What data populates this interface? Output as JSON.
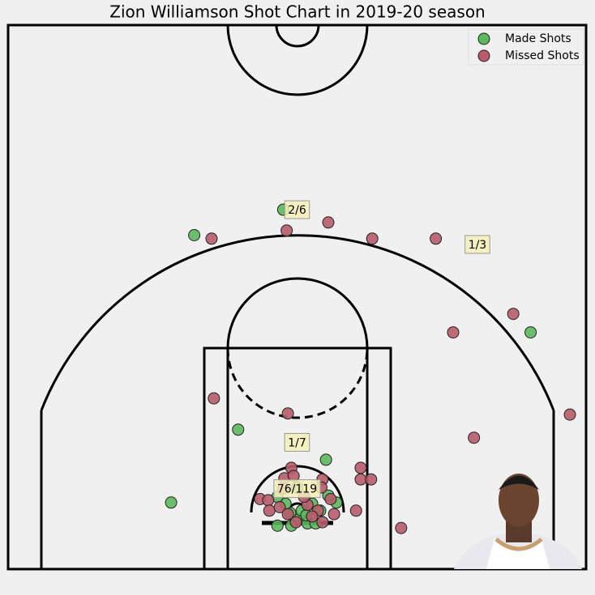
{
  "chart_data": {
    "type": "scatter",
    "title": "Zion Williamson Shot Chart in 2019-20 season",
    "xlim": [
      -250,
      250
    ],
    "ylim": [
      -47.5,
      422.5
    ],
    "legend": "upper right",
    "series": [
      {
        "name": "Made Shots",
        "color": "#5cb85c",
        "x": [
          -12,
          -89,
          -51,
          25,
          202,
          -109,
          -17,
          0,
          9,
          16,
          -6,
          4,
          34,
          27,
          -10,
          13,
          -17,
          0,
          20,
          -5,
          8
        ],
        "values": [
          263,
          241,
          73,
          47,
          157,
          10,
          -10,
          -5,
          -8,
          -8,
          1,
          3,
          10,
          16,
          9,
          9,
          15,
          23,
          3,
          -10,
          -1
        ]
      },
      {
        "name": "Missed Shots",
        "color": "#b85c6c",
        "x": [
          -9,
          27,
          -74,
          65,
          120,
          187,
          135,
          -72,
          -8,
          236,
          153,
          55,
          55,
          64,
          -5,
          -11,
          -3,
          22,
          -32,
          -25,
          -24,
          -15,
          51,
          90,
          32,
          29,
          9,
          18,
          22,
          -1,
          21,
          6,
          -12,
          13,
          -8
        ],
        "values": [
          245,
          252,
          238,
          238,
          238,
          173,
          157,
          100,
          87,
          86,
          66,
          40,
          30,
          30,
          40,
          31,
          33,
          30,
          13,
          12,
          3,
          6,
          3,
          -12,
          0,
          13,
          8,
          3,
          -7,
          -7,
          23,
          15,
          22,
          -2,
          0
        ]
      }
    ],
    "annotations": [
      "2/6",
      "1/3",
      "1/7",
      "76/119"
    ]
  }
}
